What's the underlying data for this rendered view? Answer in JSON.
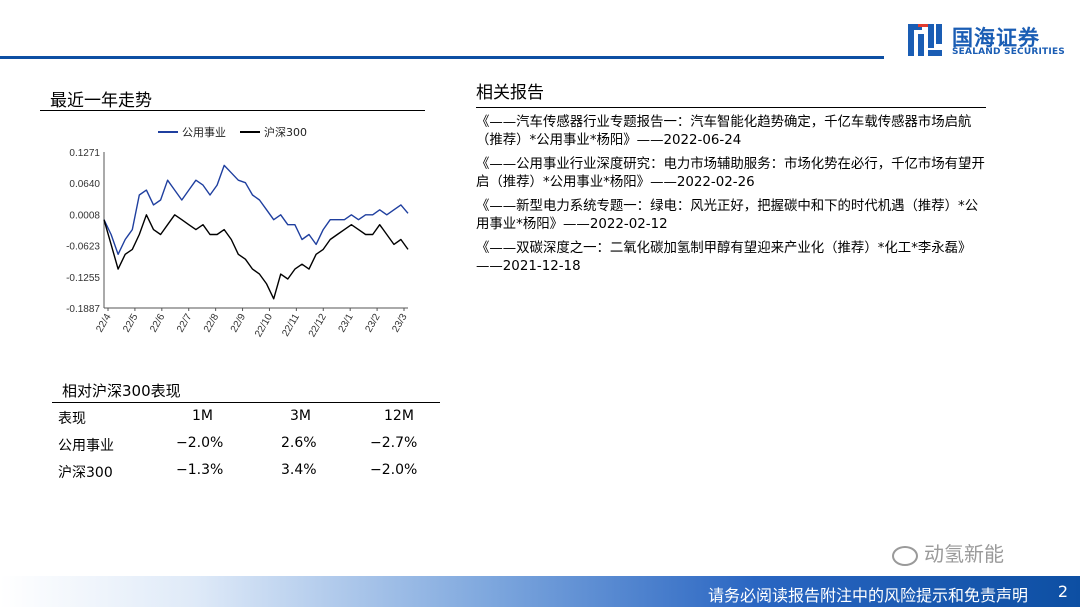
{
  "header": {
    "logo_cn": "国海证券",
    "logo_en": "SEALAND SECURITIES",
    "brand_color": "#1a5db4"
  },
  "trend_section": {
    "title": "最近一年走势"
  },
  "chart_data": {
    "type": "line",
    "series": [
      {
        "name": "公用事业",
        "color": "#1f3f9f",
        "values": [
          -0.01,
          -0.04,
          -0.08,
          -0.05,
          -0.03,
          0.04,
          0.05,
          0.02,
          0.03,
          0.07,
          0.05,
          0.03,
          0.05,
          0.07,
          0.06,
          0.04,
          0.06,
          0.1,
          0.085,
          0.07,
          0.065,
          0.04,
          0.03,
          0.01,
          -0.01,
          0.0,
          -0.02,
          -0.02,
          -0.05,
          -0.04,
          -0.06,
          -0.03,
          -0.01,
          -0.01,
          -0.01,
          0.0,
          -0.01,
          0.0,
          0.0,
          0.01,
          0.0,
          0.01,
          0.02,
          0.003
        ]
      },
      {
        "name": "沪深300",
        "color": "#000000",
        "values": [
          -0.01,
          -0.06,
          -0.11,
          -0.08,
          -0.07,
          -0.04,
          0.0,
          -0.03,
          -0.04,
          -0.02,
          0.0,
          -0.01,
          -0.02,
          -0.03,
          -0.02,
          -0.04,
          -0.04,
          -0.03,
          -0.05,
          -0.08,
          -0.09,
          -0.11,
          -0.12,
          -0.14,
          -0.17,
          -0.12,
          -0.13,
          -0.11,
          -0.1,
          -0.11,
          -0.08,
          -0.07,
          -0.05,
          -0.04,
          -0.03,
          -0.02,
          -0.03,
          -0.04,
          -0.04,
          -0.02,
          -0.04,
          -0.06,
          -0.05,
          -0.07
        ]
      }
    ],
    "x_ticks": [
      "22/4",
      "22/5",
      "22/6",
      "22/7",
      "22/8",
      "22/9",
      "22/10",
      "22/11",
      "22/12",
      "23/1",
      "23/2",
      "23/3"
    ],
    "y_ticks": [
      "0.1271",
      "0.0640",
      "0.0008",
      "-0.0623",
      "-0.1255",
      "-0.1887"
    ],
    "ylim": [
      -0.1887,
      0.1271
    ],
    "legend_position": "top"
  },
  "perf": {
    "title": "相对沪深300表现",
    "headers": [
      "表现",
      "1M",
      "3M",
      "12M"
    ],
    "rows": [
      [
        "公用事业",
        "−2.0%",
        "2.6%",
        "−2.7%"
      ],
      [
        "沪深300",
        "−1.3%",
        "3.4%",
        "−2.0%"
      ]
    ]
  },
  "reports": {
    "title": "相关报告",
    "items": [
      "《——汽车传感器行业专题报告一：汽车智能化趋势确定，千亿车载传感器市场启航（推荐）*公用事业*杨阳》——2022-06-24",
      "《——公用事业行业深度研究：电力市场辅助服务：市场化势在必行，千亿市场有望开启（推荐）*公用事业*杨阳》——2022-02-26",
      "《——新型电力系统专题一：绿电：风光正好，把握碳中和下的时代机遇（推荐）*公用事业*杨阳》——2022-02-12",
      "《——双碳深度之一：二氧化碳加氢制甲醇有望迎来产业化（推荐）*化工*李永磊》——2021-12-18"
    ]
  },
  "footer": {
    "disclaimer": "请务必阅读报告附注中的风险提示和免责声明",
    "page": "2",
    "watermark": "动氢新能"
  }
}
